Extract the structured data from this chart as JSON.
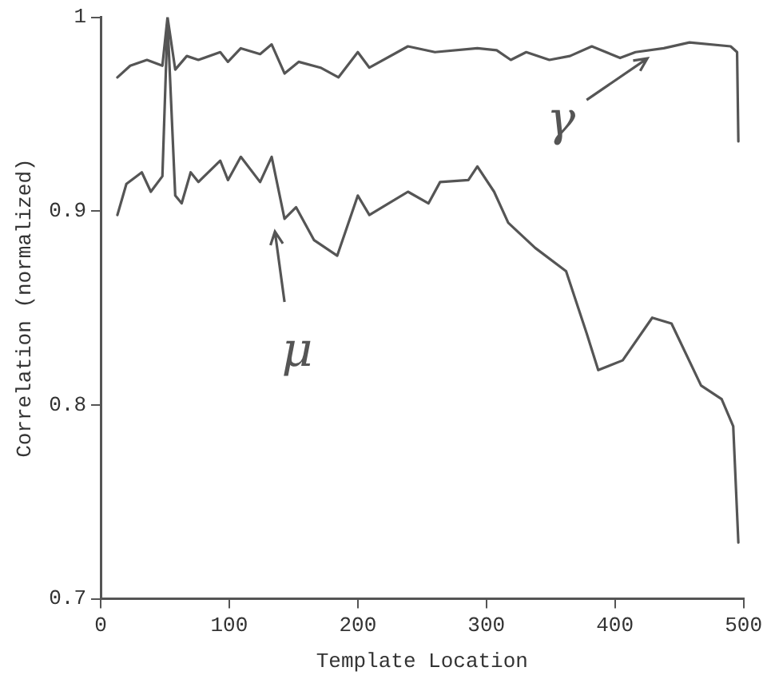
{
  "chart_data": {
    "type": "line",
    "xlabel": "Template Location",
    "ylabel": "Correlation (normalized)",
    "xlim": [
      0,
      500
    ],
    "xticks": [
      0,
      100,
      200,
      300,
      400,
      500
    ],
    "ylim": [
      0.7,
      1
    ],
    "yticks": [
      0.7,
      0.8,
      0.9,
      {
        "value": 1,
        "label": "1"
      }
    ],
    "grid": false,
    "legend": false,
    "marker": "none",
    "line_style": "solid",
    "series": [
      {
        "color": "#555555",
        "x": [
          13,
          23,
          36,
          48,
          52,
          58,
          67,
          76,
          93,
          99,
          109,
          124,
          133,
          143,
          154,
          171,
          185,
          200,
          209,
          239,
          260,
          293,
          308,
          319,
          331,
          349,
          365,
          382,
          404,
          416,
          438,
          458,
          490,
          495,
          496
        ],
        "values": [
          0.969,
          0.975,
          0.978,
          0.975,
          1.0,
          0.973,
          0.98,
          0.978,
          0.982,
          0.977,
          0.984,
          0.981,
          0.986,
          0.971,
          0.977,
          0.974,
          0.969,
          0.982,
          0.974,
          0.985,
          0.982,
          0.984,
          0.983,
          0.978,
          0.982,
          0.978,
          0.98,
          0.985,
          0.979,
          0.982,
          0.984,
          0.987,
          0.985,
          0.982,
          0.936
        ]
      },
      {
        "color": "#555555",
        "x": [
          13,
          20,
          32,
          39,
          48,
          52,
          58,
          63,
          70,
          76,
          93,
          99,
          109,
          124,
          133,
          143,
          152,
          166,
          184,
          200,
          209,
          239,
          255,
          264,
          286,
          293,
          306,
          317,
          338,
          362,
          378,
          387,
          406,
          429,
          444,
          467,
          483,
          492,
          496
        ],
        "values": [
          0.898,
          0.914,
          0.92,
          0.91,
          0.918,
          0.998,
          0.908,
          0.904,
          0.92,
          0.915,
          0.926,
          0.916,
          0.928,
          0.915,
          0.928,
          0.896,
          0.902,
          0.885,
          0.877,
          0.908,
          0.898,
          0.91,
          0.904,
          0.915,
          0.916,
          0.923,
          0.91,
          0.894,
          0.881,
          0.869,
          0.837,
          0.818,
          0.823,
          0.845,
          0.842,
          0.81,
          0.803,
          0.789,
          0.729
        ]
      }
    ],
    "annotations": [
      {
        "text": "γ",
        "x": 460,
        "y": 0.987
      },
      {
        "text": "μ",
        "x": 143,
        "y": 0.896
      }
    ]
  }
}
